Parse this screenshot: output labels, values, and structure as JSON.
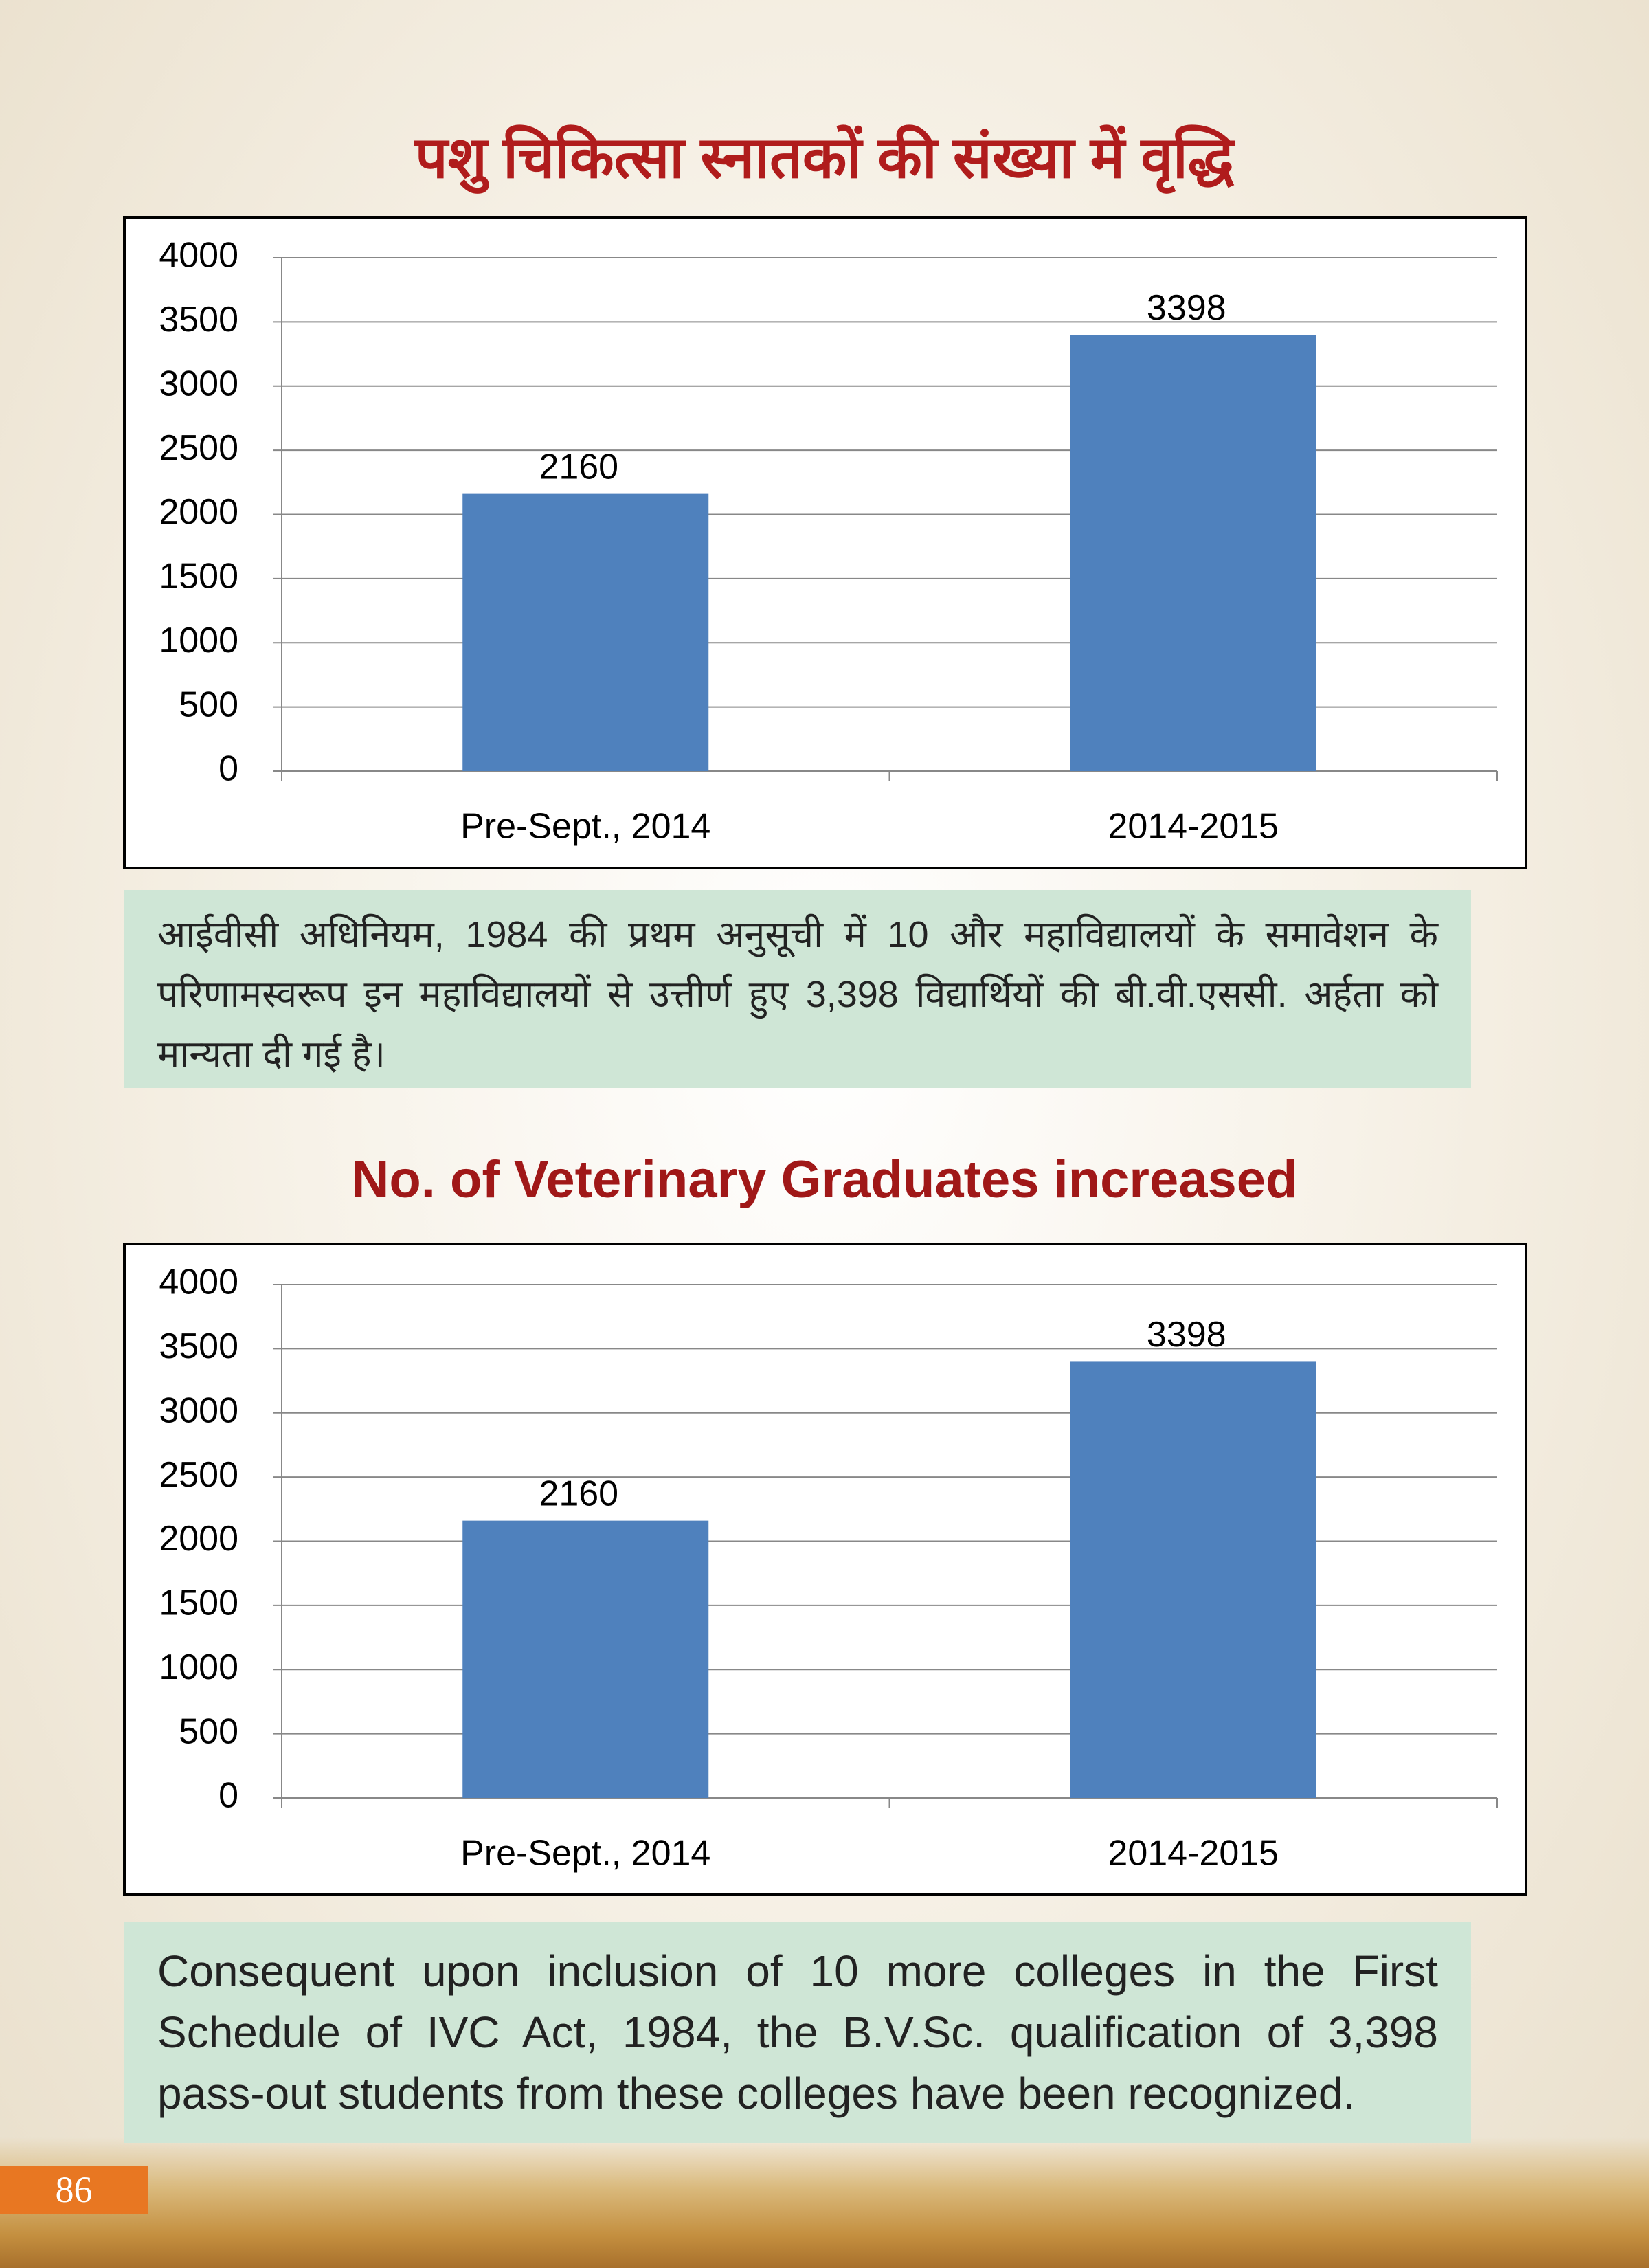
{
  "chart_data": [
    {
      "type": "bar",
      "title": "पशु चिकित्सा स्नातकों की संख्या में वृद्धि",
      "categories": [
        "Pre-Sept., 2014",
        "2014-2015"
      ],
      "values": [
        2160,
        3398
      ],
      "color": "#4f81bd",
      "ylim": [
        0,
        4000
      ],
      "yticks": [
        0,
        500,
        1000,
        1500,
        2000,
        2500,
        3000,
        3500,
        4000
      ],
      "grid": true
    },
    {
      "type": "bar",
      "title": "No. of Veterinary Graduates increased",
      "categories": [
        "Pre-Sept., 2014",
        "2014-2015"
      ],
      "values": [
        2160,
        3398
      ],
      "color": "#4f81bd",
      "ylim": [
        0,
        4000
      ],
      "yticks": [
        0,
        500,
        1000,
        1500,
        2000,
        2500,
        3000,
        3500,
        4000
      ],
      "grid": true
    }
  ],
  "notes": [
    "आईवीसी अधिनियम, 1984 की प्रथम अनुसूची में 10 और महाविद्यालयों के समावेशन के परिणामस्वरूप इन महाविद्यालयों से उत्तीर्ण हुए 3,398 विद्यार्थियों की बी.वी.एससी. अर्हता को मान्यता दी गई है।",
    "Consequent upon inclusion of 10 more colleges in the First Schedule of IVC Act, 1984, the B.V.Sc. qualification of 3,398 pass-out students from these colleges have been recognized."
  ],
  "page_number": "86"
}
